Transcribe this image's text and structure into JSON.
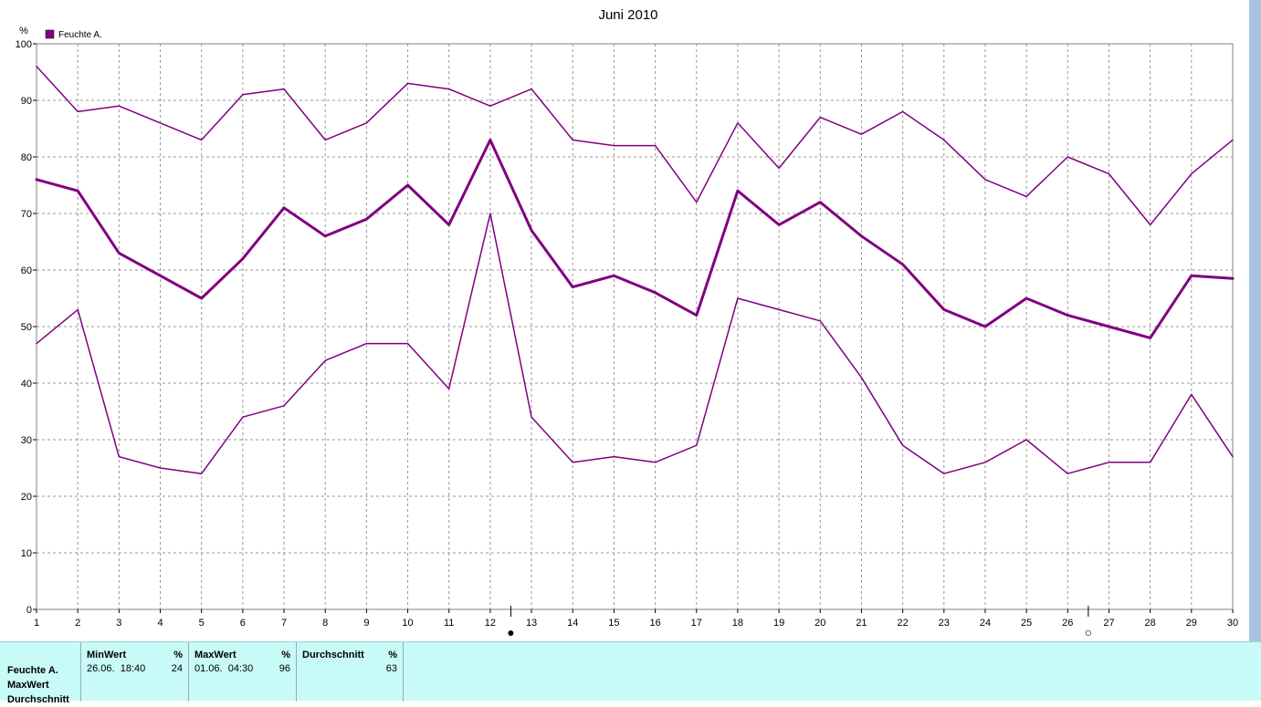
{
  "chart_data": {
    "type": "line",
    "title": "Juni 2010",
    "yunit": "%",
    "ylim": [
      0,
      100
    ],
    "yticks": [
      0,
      10,
      20,
      30,
      40,
      50,
      60,
      70,
      80,
      90,
      100
    ],
    "x": [
      1,
      2,
      3,
      4,
      5,
      6,
      7,
      8,
      9,
      10,
      11,
      12,
      13,
      14,
      15,
      16,
      17,
      18,
      19,
      20,
      21,
      22,
      23,
      24,
      25,
      26,
      27,
      28,
      29,
      30
    ],
    "legend": {
      "label": "Feuchte A.",
      "color": "#800080",
      "placement": "top-left"
    },
    "grid": true,
    "moon_phases": [
      {
        "day": 12.5,
        "symbol": "●",
        "phase": "new-moon"
      },
      {
        "day": 26.5,
        "symbol": "○",
        "phase": "full-moon"
      }
    ],
    "series": [
      {
        "line_width": 1.5,
        "color": "#800080",
        "values": [
          96,
          88,
          89,
          86,
          83,
          91,
          92,
          83,
          86,
          93,
          92,
          89,
          92,
          83,
          82,
          82,
          72,
          86,
          78,
          87,
          84,
          88,
          83,
          76,
          73,
          80,
          77,
          68,
          77,
          83
        ]
      },
      {
        "line_width": 3,
        "color": "#800080",
        "values": [
          76,
          74,
          63,
          59,
          55,
          62,
          71,
          66,
          69,
          75,
          68,
          83,
          67,
          57,
          59,
          56,
          52,
          74,
          68,
          72,
          66,
          61,
          53,
          50,
          55,
          52,
          50,
          48,
          59,
          58.5
        ]
      },
      {
        "line_width": 1.5,
        "color": "#800080",
        "values": [
          47,
          53,
          27,
          25,
          24,
          34,
          36,
          44,
          47,
          47,
          39,
          70,
          34,
          26,
          27,
          26,
          29,
          55,
          53,
          51,
          41,
          29,
          24,
          26,
          30,
          24,
          26,
          26,
          38,
          27
        ]
      }
    ]
  },
  "stats": {
    "row_labels": [
      "Feuchte A.",
      "MaxWert",
      "Durchschnitt"
    ],
    "columns": [
      {
        "header": "MinWert",
        "unit": "%",
        "time": "26.06.  18:40",
        "value": "24"
      },
      {
        "header": "MaxWert",
        "unit": "%",
        "time": "01.06.  04:30",
        "value": "96"
      },
      {
        "header": "Durchschnitt",
        "unit": "%",
        "time": "",
        "value": "63"
      }
    ]
  }
}
